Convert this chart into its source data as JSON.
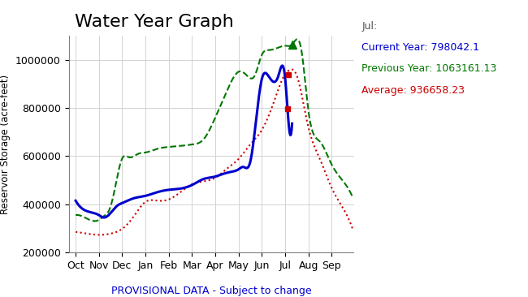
{
  "title": "Water Year Graph",
  "ylabel": "Reservoir Storage (acre-feet)",
  "xlabel_note": "PROVISIONAL DATA - Subject to change",
  "ylim": [
    200000,
    1100000
  ],
  "yticks": [
    200000,
    400000,
    600000,
    800000,
    1000000
  ],
  "months": [
    "Oct",
    "Nov",
    "Dec",
    "Jan",
    "Feb",
    "Mar",
    "Apr",
    "May",
    "Jun",
    "Jul",
    "Aug",
    "Sep"
  ],
  "annotation_label": "Jul:",
  "current_year_label": "Current Year",
  "current_year_value": "798042.1",
  "previous_year_label": "Previous Year",
  "previous_year_value": "1063161.13",
  "average_label": "Average",
  "average_value": "936658.23",
  "current_year_color": "#0000cc",
  "previous_year_color": "#007700",
  "average_color": "#cc0000",
  "background_color": "#ffffff"
}
